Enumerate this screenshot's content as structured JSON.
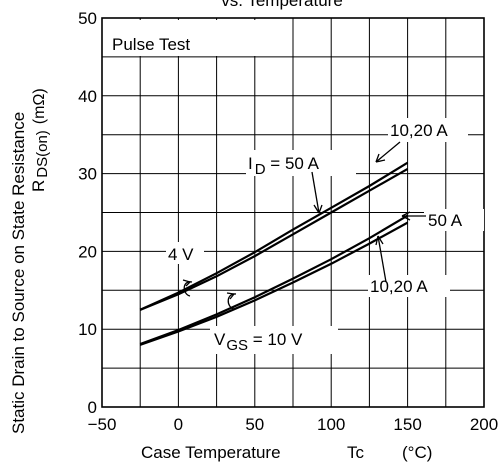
{
  "chart_data": {
    "type": "line",
    "title": "vs. Temperature",
    "xlabel": "Case Temperature",
    "xlabel_symbol": "Tc",
    "xlabel_unit": "(°C)",
    "ylabel_line1": "Static Drain to Source on State Resistance",
    "ylabel_line2": "R",
    "ylabel_sub": "DS(on)",
    "ylabel_unit": "(mΩ)",
    "xlim": [
      -50,
      200
    ],
    "ylim": [
      0,
      50
    ],
    "x_ticks": [
      "−50",
      "0",
      "50",
      "100",
      "150",
      "200"
    ],
    "y_ticks": [
      "0",
      "10",
      "20",
      "30",
      "40",
      "50"
    ],
    "grid": true,
    "annotation_box": "Pulse Test",
    "series": [
      {
        "group": "4 V",
        "label": "10,20 A",
        "x": [
          -25,
          0,
          25,
          50,
          75,
          100,
          125,
          150
        ],
        "y": [
          12.5,
          14.5,
          16.8,
          19.4,
          22.2,
          25.0,
          27.8,
          30.6
        ]
      },
      {
        "group": "4 V",
        "label": "50 A",
        "x": [
          -25,
          0,
          25,
          50,
          75,
          100,
          125,
          150
        ],
        "y": [
          12.5,
          14.7,
          17.2,
          19.9,
          22.8,
          25.6,
          28.4,
          31.4
        ]
      },
      {
        "group": "VGS = 10 V",
        "label": "50 A",
        "x": [
          -25,
          0,
          25,
          50,
          75,
          100,
          125,
          150
        ],
        "y": [
          8.1,
          9.9,
          11.9,
          14.1,
          16.5,
          19.0,
          21.7,
          24.6
        ]
      },
      {
        "group": "VGS = 10 V",
        "label": "10,20 A",
        "x": [
          -25,
          0,
          25,
          50,
          75,
          100,
          125,
          150
        ],
        "y": [
          8.0,
          9.7,
          11.6,
          13.7,
          16.0,
          18.4,
          21.0,
          23.7
        ]
      }
    ],
    "annotations": {
      "id_prefix": "I",
      "id_sub": "D",
      "id_value": " = 50 A",
      "top_right": "10,20 A",
      "vgs4": "4 V",
      "mid_right": "50 A",
      "lower_right": "10,20 A",
      "vgs_prefix": "V",
      "vgs_sub": "GS",
      "vgs_value": " = 10 V"
    }
  }
}
